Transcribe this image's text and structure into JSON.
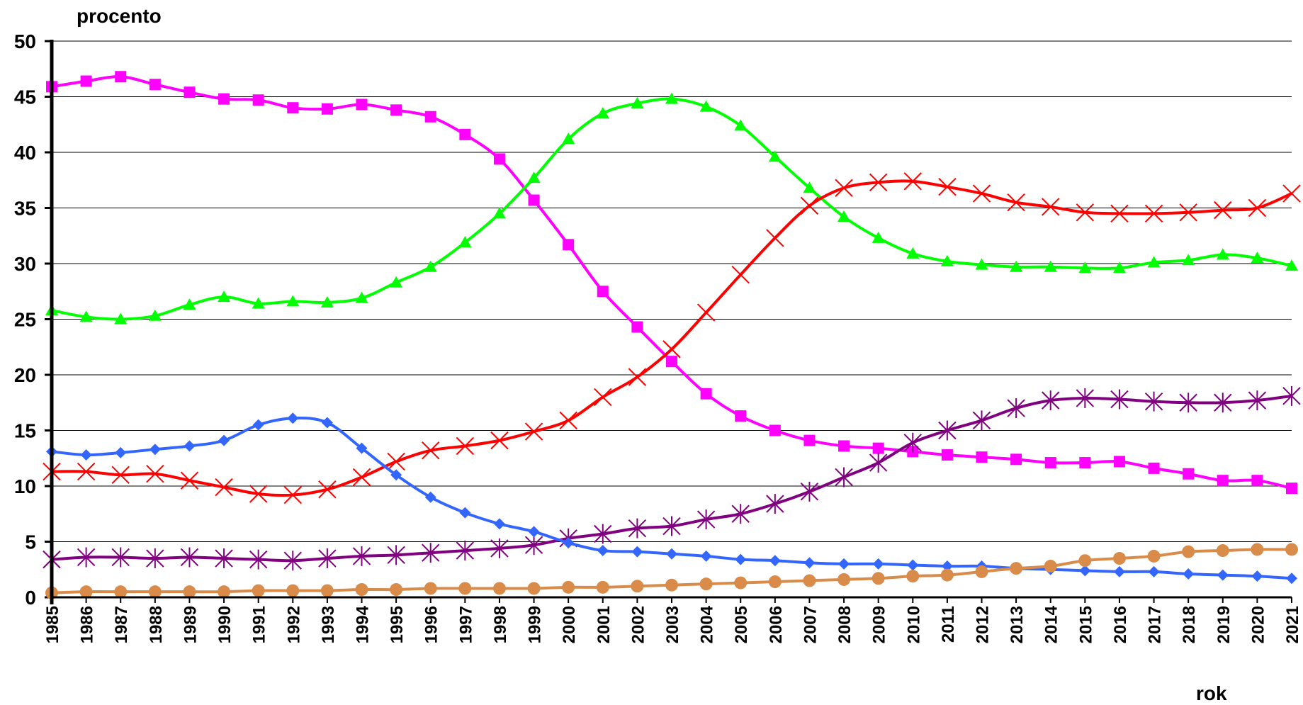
{
  "chart_data": {
    "type": "line",
    "ylabel": "procento",
    "xlabel": "rok",
    "ylim": [
      0,
      50
    ],
    "yticks": [
      "0",
      "5",
      "10",
      "15",
      "20",
      "25",
      "30",
      "35",
      "40",
      "45",
      "50"
    ],
    "grid": true,
    "categories": [
      "1985",
      "1986",
      "1987",
      "1988",
      "1989",
      "1990",
      "1991",
      "1992",
      "1993",
      "1994",
      "1995",
      "1996",
      "1997",
      "1998",
      "1999",
      "2000",
      "2001",
      "2002",
      "2003",
      "2004",
      "2005",
      "2006",
      "2007",
      "2008",
      "2009",
      "2010",
      "2011",
      "2012",
      "2013",
      "2014",
      "2015",
      "2016",
      "2017",
      "2018",
      "2019",
      "2020",
      "2021"
    ],
    "series": [
      {
        "color": "#ff00ff",
        "marker": "square",
        "values": [
          45.9,
          46.4,
          46.8,
          46.1,
          45.4,
          44.8,
          44.7,
          44.0,
          43.9,
          44.3,
          43.8,
          43.2,
          41.6,
          39.4,
          35.7,
          31.7,
          27.5,
          24.3,
          21.2,
          18.3,
          16.3,
          15.0,
          14.1,
          13.6,
          13.4,
          13.1,
          12.8,
          12.6,
          12.4,
          12.1,
          12.1,
          12.2,
          11.6,
          11.1,
          10.5,
          10.5,
          9.8
        ]
      },
      {
        "color": "#00ff00",
        "marker": "triangle",
        "values": [
          25.8,
          25.2,
          25.0,
          25.3,
          26.3,
          27.0,
          26.4,
          26.6,
          26.5,
          26.9,
          28.3,
          29.7,
          31.9,
          34.5,
          37.7,
          41.2,
          43.5,
          44.4,
          44.8,
          44.1,
          42.4,
          39.6,
          36.8,
          34.2,
          32.3,
          30.9,
          30.2,
          29.9,
          29.7,
          29.7,
          29.6,
          29.6,
          30.1,
          30.3,
          30.8,
          30.5,
          29.8
        ]
      },
      {
        "color": "#ff0000",
        "marker": "x",
        "values": [
          11.3,
          11.3,
          11.0,
          11.1,
          10.5,
          9.9,
          9.3,
          9.2,
          9.7,
          10.8,
          12.2,
          13.2,
          13.6,
          14.1,
          14.9,
          15.9,
          18.0,
          19.8,
          22.3,
          25.6,
          29.0,
          32.3,
          35.2,
          36.8,
          37.3,
          37.4,
          36.9,
          36.3,
          35.5,
          35.1,
          34.6,
          34.5,
          34.5,
          34.6,
          34.8,
          35.0,
          36.3
        ]
      },
      {
        "color": "#800080",
        "marker": "star",
        "values": [
          3.4,
          3.6,
          3.6,
          3.5,
          3.6,
          3.5,
          3.4,
          3.3,
          3.5,
          3.7,
          3.8,
          4.0,
          4.2,
          4.4,
          4.7,
          5.3,
          5.7,
          6.2,
          6.4,
          7.0,
          7.5,
          8.4,
          9.5,
          10.8,
          12.1,
          13.9,
          15.0,
          15.9,
          17.0,
          17.7,
          17.9,
          17.8,
          17.6,
          17.5,
          17.5,
          17.7,
          18.1
        ]
      },
      {
        "color": "#3366ff",
        "marker": "diamond",
        "values": [
          13.1,
          12.8,
          13.0,
          13.3,
          13.6,
          14.1,
          15.5,
          16.1,
          15.7,
          13.4,
          11.0,
          9.0,
          7.6,
          6.6,
          5.9,
          4.9,
          4.2,
          4.1,
          3.9,
          3.7,
          3.4,
          3.3,
          3.1,
          3.0,
          3.0,
          2.9,
          2.8,
          2.8,
          2.6,
          2.5,
          2.4,
          2.3,
          2.3,
          2.1,
          2.0,
          1.9,
          1.7
        ]
      },
      {
        "color": "#d98c4a",
        "marker": "circle",
        "values": [
          0.4,
          0.5,
          0.5,
          0.5,
          0.5,
          0.5,
          0.6,
          0.6,
          0.6,
          0.7,
          0.7,
          0.8,
          0.8,
          0.8,
          0.8,
          0.9,
          0.9,
          1.0,
          1.1,
          1.2,
          1.3,
          1.4,
          1.5,
          1.6,
          1.7,
          1.9,
          2.0,
          2.3,
          2.6,
          2.8,
          3.3,
          3.5,
          3.7,
          4.1,
          4.2,
          4.3,
          4.3
        ]
      }
    ]
  }
}
